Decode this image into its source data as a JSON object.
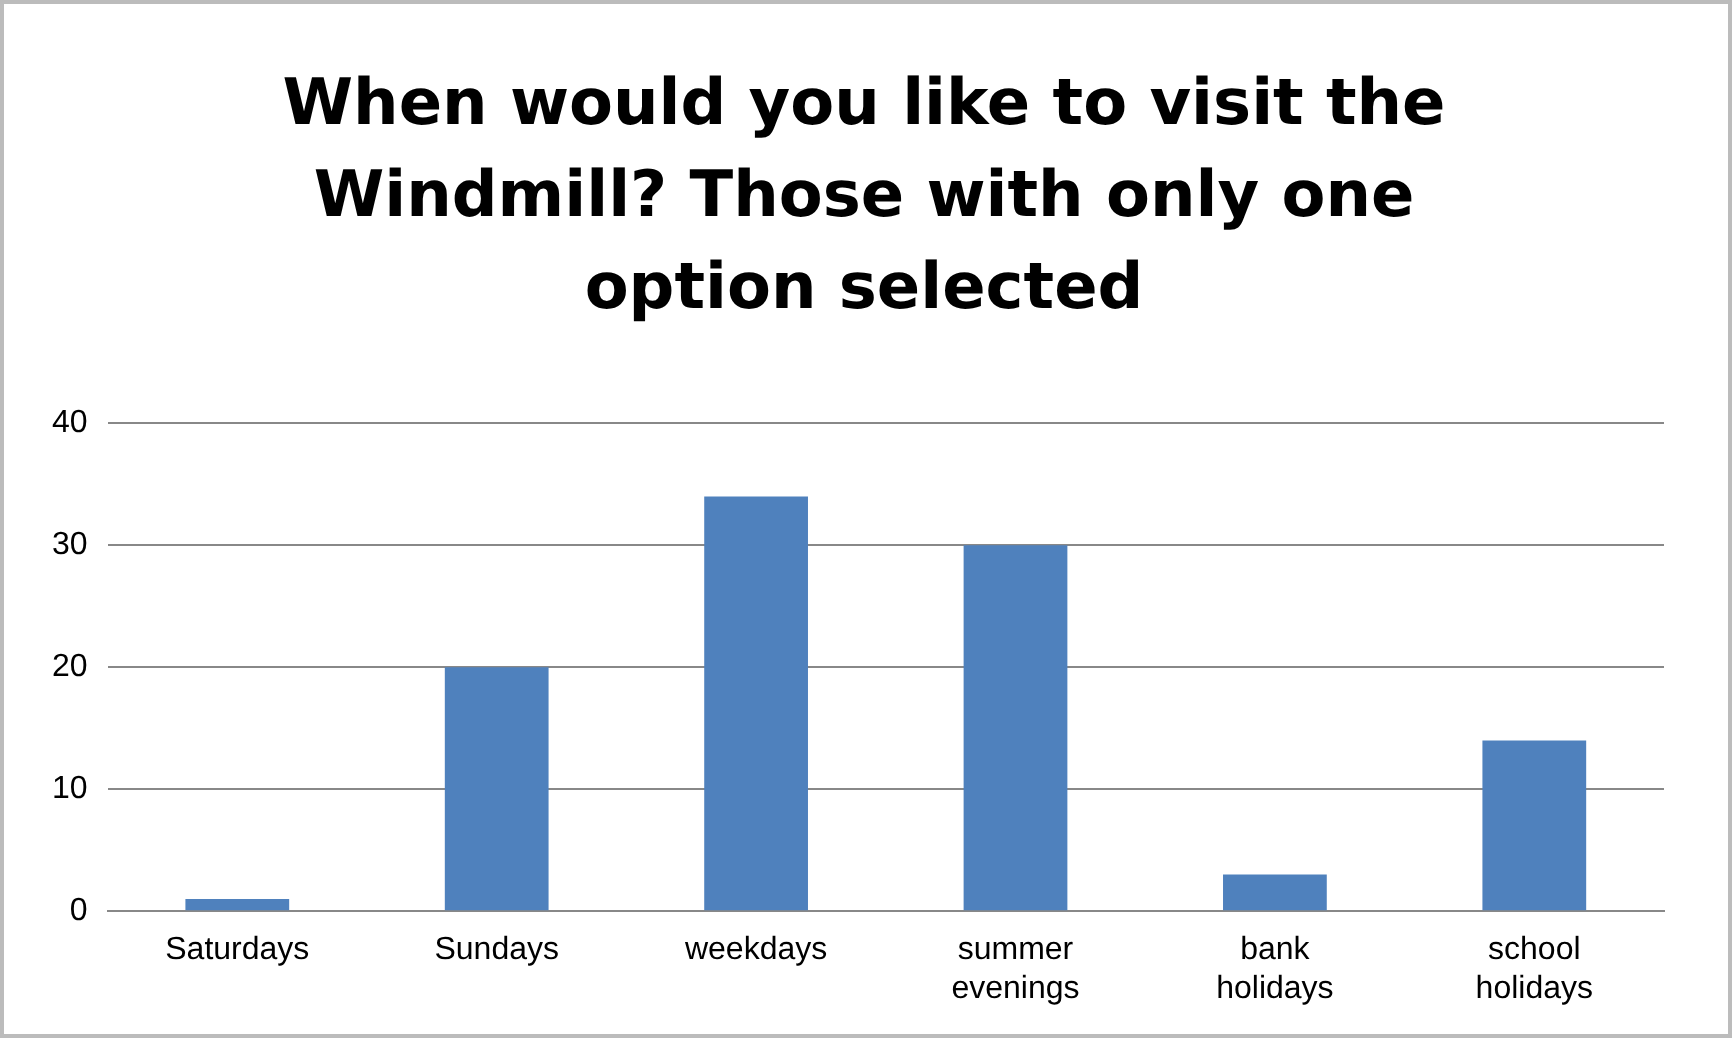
{
  "chart_data": {
    "type": "bar",
    "title": "When would you like to visit the Windmill?  Those with only one option selected",
    "categories": [
      "Saturdays",
      "Sundays",
      "weekdays",
      "summer evenings",
      "bank holidays",
      "school holidays"
    ],
    "values": [
      1,
      20,
      34,
      30,
      3,
      14
    ],
    "color": "#4f81bd",
    "ylim": [
      0,
      40
    ],
    "yticks": [
      0,
      10,
      20,
      30,
      40
    ],
    "grid": "y",
    "legend": false
  }
}
